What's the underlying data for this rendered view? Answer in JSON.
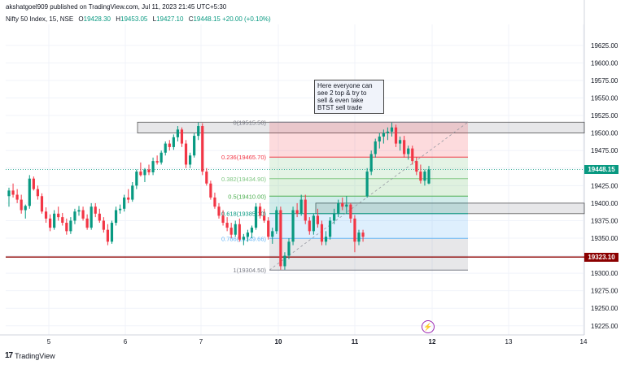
{
  "header": {
    "published": "akshatgoel909 published on TradingView.com, Jul 11, 2023 21:45 UTC+5:30",
    "symbol": "Nifty 50 Index, 15, NSE",
    "open_label": "O",
    "open": "19428.30",
    "high_label": "H",
    "high": "19453.05",
    "low_label": "L",
    "low": "19427.10",
    "close_label": "C",
    "close": "19448.15",
    "change": "+20.00 (+0.10%)"
  },
  "annotation": {
    "text": "Here everyone can\nsee 2 top & try to\nsell & even take\nBTST sell trade"
  },
  "footer": {
    "brand": "TradingView",
    "logo": "17"
  },
  "colors": {
    "up": "#089981",
    "down": "#f23645",
    "support": "#8b0000",
    "last_price": "#089981"
  },
  "price_tags": {
    "last": "19448.15",
    "support": "19323.10"
  },
  "chart_data": {
    "type": "candlestick",
    "symbol": "Nifty 50 Index",
    "interval": "15",
    "exchange": "NSE",
    "x_tick_labels": [
      "5",
      "6",
      "7",
      "10",
      "11",
      "12",
      "13",
      "14"
    ],
    "y_tick_labels": [
      "19225.00",
      "19250.00",
      "19275.00",
      "19300.00",
      "19325.00",
      "19350.00",
      "19375.00",
      "19400.00",
      "19425.00",
      "19450.00",
      "19475.00",
      "19500.00",
      "19525.00",
      "19550.00",
      "19575.00",
      "19600.00",
      "19625.00"
    ],
    "ylim": [
      19212,
      19655
    ],
    "candles": [
      [
        19410,
        19422,
        19395,
        19418
      ],
      [
        19418,
        19428,
        19408,
        19412
      ],
      [
        19412,
        19420,
        19400,
        19405
      ],
      [
        19405,
        19412,
        19385,
        19390
      ],
      [
        19390,
        19398,
        19378,
        19396
      ],
      [
        19396,
        19440,
        19392,
        19435
      ],
      [
        19435,
        19438,
        19418,
        19420
      ],
      [
        19420,
        19425,
        19405,
        19410
      ],
      [
        19410,
        19414,
        19385,
        19388
      ],
      [
        19388,
        19394,
        19372,
        19378
      ],
      [
        19378,
        19384,
        19360,
        19365
      ],
      [
        19365,
        19390,
        19362,
        19385
      ],
      [
        19385,
        19395,
        19375,
        19380
      ],
      [
        19380,
        19386,
        19368,
        19372
      ],
      [
        19372,
        19378,
        19355,
        19360
      ],
      [
        19360,
        19380,
        19356,
        19375
      ],
      [
        19375,
        19392,
        19370,
        19388
      ],
      [
        19388,
        19396,
        19382,
        19390
      ],
      [
        19390,
        19395,
        19375,
        19378
      ],
      [
        19378,
        19384,
        19362,
        19365
      ],
      [
        19365,
        19400,
        19362,
        19395
      ],
      [
        19395,
        19400,
        19380,
        19385
      ],
      [
        19385,
        19392,
        19372,
        19375
      ],
      [
        19375,
        19380,
        19358,
        19362
      ],
      [
        19362,
        19370,
        19340,
        19345
      ],
      [
        19345,
        19375,
        19342,
        19372
      ],
      [
        19372,
        19395,
        19368,
        19390
      ],
      [
        19390,
        19398,
        19385,
        19392
      ],
      [
        19392,
        19412,
        19388,
        19408
      ],
      [
        19408,
        19420,
        19400,
        19405
      ],
      [
        19405,
        19430,
        19402,
        19425
      ],
      [
        19425,
        19448,
        19420,
        19445
      ],
      [
        19445,
        19458,
        19438,
        19440
      ],
      [
        19440,
        19450,
        19430,
        19448
      ],
      [
        19448,
        19455,
        19440,
        19444
      ],
      [
        19444,
        19465,
        19440,
        19460
      ],
      [
        19460,
        19468,
        19455,
        19458
      ],
      [
        19458,
        19475,
        19455,
        19472
      ],
      [
        19472,
        19488,
        19468,
        19485
      ],
      [
        19485,
        19490,
        19475,
        19480
      ],
      [
        19480,
        19498,
        19476,
        19494
      ],
      [
        19494,
        19510,
        19488,
        19505
      ],
      [
        19505,
        19508,
        19480,
        19485
      ],
      [
        19485,
        19490,
        19450,
        19455
      ],
      [
        19455,
        19472,
        19450,
        19468
      ],
      [
        19468,
        19500,
        19465,
        19496
      ],
      [
        19496,
        19515,
        19490,
        19510
      ],
      [
        19510,
        19514,
        19440,
        19445
      ],
      [
        19445,
        19450,
        19425,
        19428
      ],
      [
        19428,
        19432,
        19405,
        19408
      ],
      [
        19408,
        19415,
        19392,
        19395
      ],
      [
        19395,
        19400,
        19378,
        19382
      ],
      [
        19382,
        19390,
        19368,
        19372
      ],
      [
        19372,
        19380,
        19360,
        19365
      ],
      [
        19365,
        19372,
        19350,
        19355
      ],
      [
        19355,
        19375,
        19352,
        19370
      ],
      [
        19370,
        19378,
        19345,
        19348
      ],
      [
        19348,
        19356,
        19340,
        19352
      ],
      [
        19352,
        19362,
        19345,
        19358
      ],
      [
        19358,
        19368,
        19350,
        19365
      ],
      [
        19365,
        19400,
        19362,
        19395
      ],
      [
        19395,
        19400,
        19378,
        19382
      ],
      [
        19382,
        19392,
        19372,
        19375
      ],
      [
        19375,
        19380,
        19348,
        19352
      ],
      [
        19352,
        19365,
        19342,
        19360
      ],
      [
        19360,
        19395,
        19356,
        19390
      ],
      [
        19390,
        19395,
        19305,
        19310
      ],
      [
        19310,
        19330,
        19305,
        19325
      ],
      [
        19325,
        19350,
        19320,
        19345
      ],
      [
        19345,
        19395,
        19340,
        19390
      ],
      [
        19390,
        19400,
        19380,
        19385
      ],
      [
        19385,
        19412,
        19382,
        19405
      ],
      [
        19405,
        19412,
        19370,
        19375
      ],
      [
        19375,
        19380,
        19355,
        19360
      ],
      [
        19360,
        19385,
        19355,
        19382
      ],
      [
        19382,
        19392,
        19365,
        19370
      ],
      [
        19370,
        19375,
        19340,
        19345
      ],
      [
        19345,
        19360,
        19340,
        19352
      ],
      [
        19352,
        19380,
        19348,
        19375
      ],
      [
        19375,
        19392,
        19370,
        19385
      ],
      [
        19385,
        19405,
        19380,
        19400
      ],
      [
        19400,
        19408,
        19390,
        19395
      ],
      [
        19395,
        19410,
        19385,
        19398
      ],
      [
        19398,
        19400,
        19372,
        19378
      ],
      [
        19378,
        19383,
        19330,
        19345
      ],
      [
        19345,
        19362,
        19340,
        19358
      ],
      [
        19358,
        19362,
        19345,
        19352
      ],
      [
        19410,
        19450,
        19408,
        19445
      ],
      [
        19445,
        19475,
        19440,
        19470
      ],
      [
        19470,
        19492,
        19465,
        19488
      ],
      [
        19488,
        19500,
        19478,
        19495
      ],
      [
        19495,
        19505,
        19485,
        19500
      ],
      [
        19500,
        19508,
        19490,
        19502
      ],
      [
        19502,
        19515,
        19495,
        19508
      ],
      [
        19508,
        19512,
        19480,
        19485
      ],
      [
        19485,
        19495,
        19475,
        19490
      ],
      [
        19490,
        19496,
        19465,
        19470
      ],
      [
        19470,
        19482,
        19462,
        19478
      ],
      [
        19478,
        19482,
        19455,
        19460
      ],
      [
        19460,
        19466,
        19440,
        19445
      ],
      [
        19445,
        19455,
        19428,
        19432
      ],
      [
        19432,
        19448,
        19425,
        19445
      ],
      [
        19428,
        19453,
        19427,
        19448
      ]
    ],
    "fibonacci": [
      {
        "label": "0(19515.50)",
        "value": 19515.5
      },
      {
        "label": "0.236(19465.70)",
        "value": 19465.7
      },
      {
        "label": "0.382(19434.90)",
        "value": 19434.9
      },
      {
        "label": "0.5(19410.00)",
        "value": 19410.0
      },
      {
        "label": "0.618(19385.10)",
        "value": 19385.1
      },
      {
        "label": "0.786(19349.66)",
        "value": 19349.66
      },
      {
        "label": "1(19304.50)",
        "value": 19304.5
      }
    ],
    "zones": [
      {
        "name": "resistance-zone",
        "top": 19515.5,
        "bottom": 19500
      },
      {
        "name": "middle-zone",
        "top": 19400,
        "bottom": 19385
      }
    ],
    "support_line": 19323.1,
    "last_price": 19448.15,
    "grid": true
  }
}
